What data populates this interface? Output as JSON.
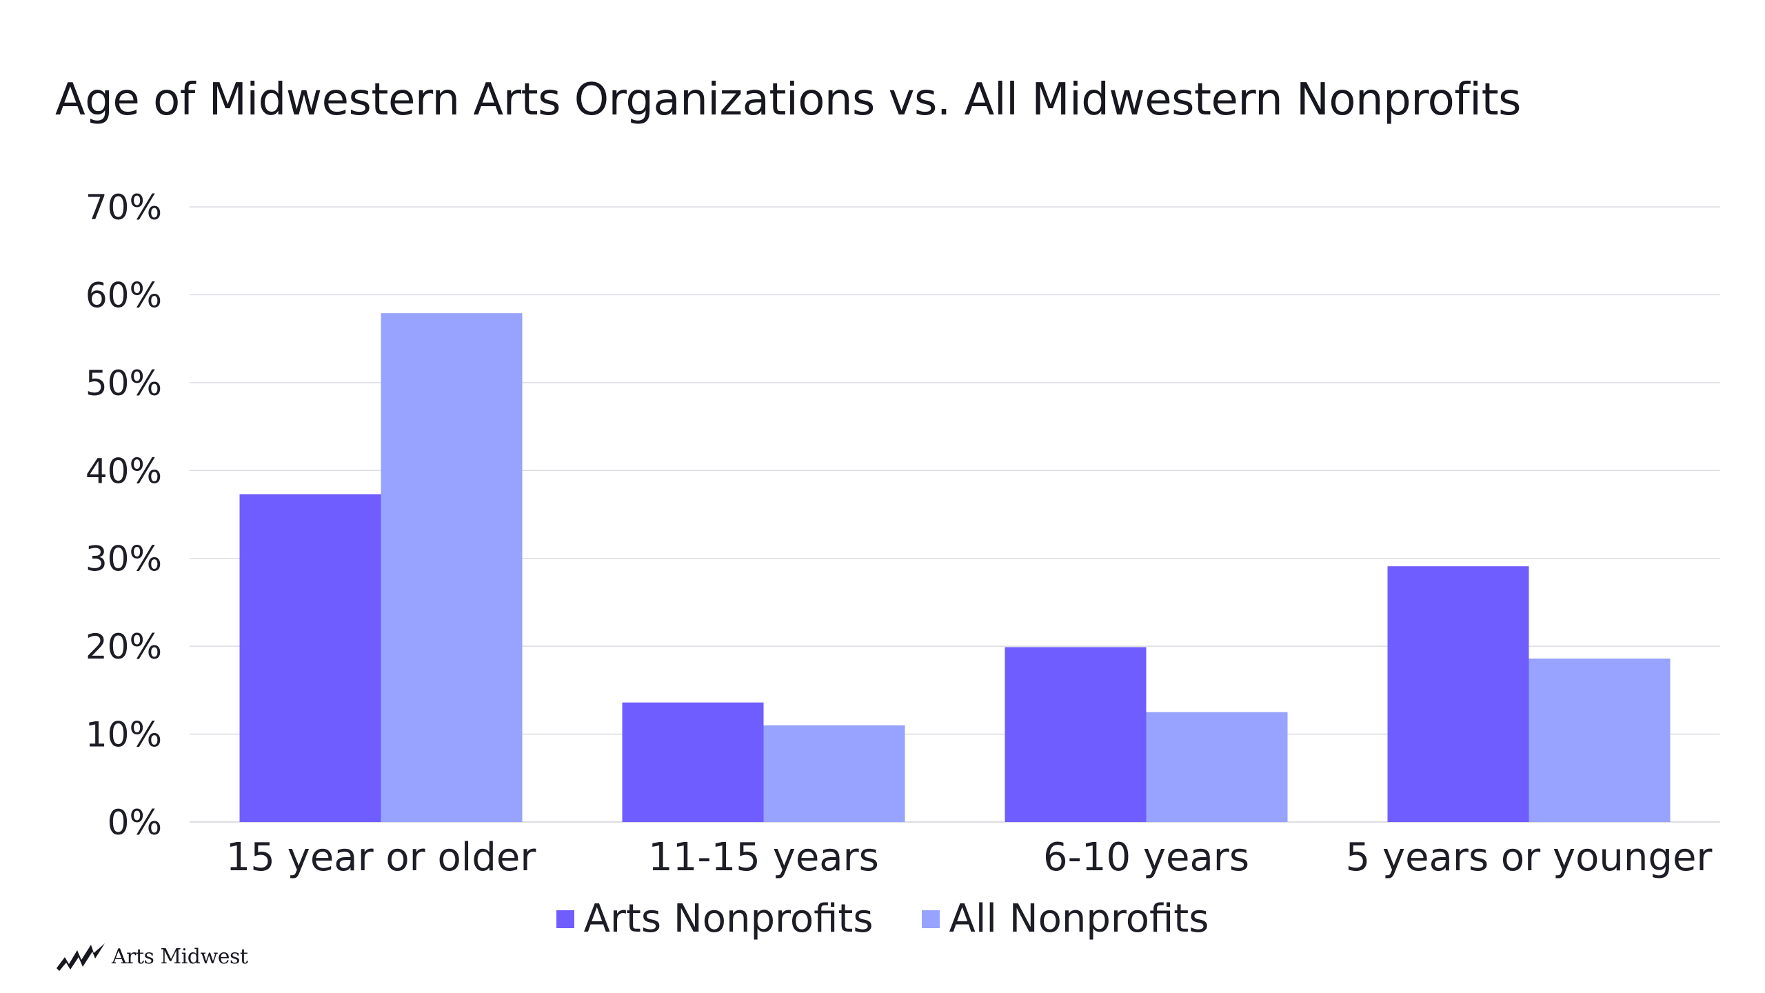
{
  "colors": {
    "arts": "#6f5dff",
    "all": "#97a3ff",
    "grid": "#dcdce2",
    "text": "#1d1d26"
  },
  "logo": {
    "text": "Arts Midwest",
    "icon": "arts-midwest-wave-icon"
  },
  "chart_data": {
    "type": "bar",
    "title": "Age of Midwestern Arts Organizations vs. All Midwestern Nonprofits",
    "xlabel": "",
    "ylabel": "",
    "ylim": [
      0,
      70
    ],
    "y_ticks": [
      0,
      10,
      20,
      30,
      40,
      50,
      60,
      70
    ],
    "y_tick_labels": [
      "0%",
      "10%",
      "20%",
      "30%",
      "40%",
      "50%",
      "60%",
      "70%"
    ],
    "grid": true,
    "legend_position": "bottom-center",
    "categories": [
      "15 year or older",
      "11-15 years",
      "6-10 years",
      "5 years or younger"
    ],
    "series": [
      {
        "name": "Arts Nonprofits",
        "color_key": "arts",
        "values": [
          37.3,
          13.6,
          19.9,
          29.1
        ]
      },
      {
        "name": "All Nonprofits",
        "color_key": "all",
        "values": [
          57.9,
          11.0,
          12.5,
          18.6
        ]
      }
    ]
  }
}
